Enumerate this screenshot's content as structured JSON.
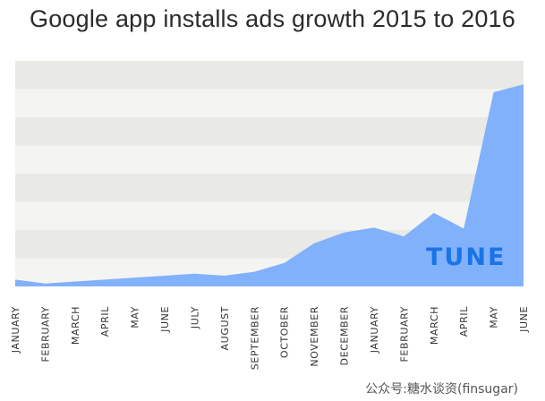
{
  "chart_data": {
    "type": "area",
    "title": "Google app installs ads growth 2015 to 2016",
    "xlabel": "",
    "ylabel": "",
    "categories": [
      "JANUARY",
      "FEBRUARY",
      "MARCH",
      "APRIL",
      "MAY",
      "JUNE",
      "JULY",
      "AUGUST",
      "SEPTEMBER",
      "OCTOBER",
      "NOVEMBER",
      "DECEMBER",
      "JANUARY",
      "FEBRUARY",
      "MARCH",
      "APRIL",
      "MAY",
      "JUNE"
    ],
    "series": [
      {
        "values": [
          3.5,
          1.5,
          2.5,
          3.5,
          4.5,
          5.5,
          6.5,
          5.5,
          7.5,
          12.0,
          22.0,
          27.5,
          30.0,
          25.5,
          37.5,
          29.5,
          99.0,
          103.0
        ]
      }
    ],
    "ylim": [
      0,
      115
    ],
    "grid": true,
    "legend": "none",
    "colors": {
      "area": "#82b1fb",
      "band_light": "#f4f4f2",
      "band_dark": "#e9e9e6"
    },
    "brand_logo": "TUNE",
    "watermark": "公众号:糖水谈资(finsugar)"
  }
}
